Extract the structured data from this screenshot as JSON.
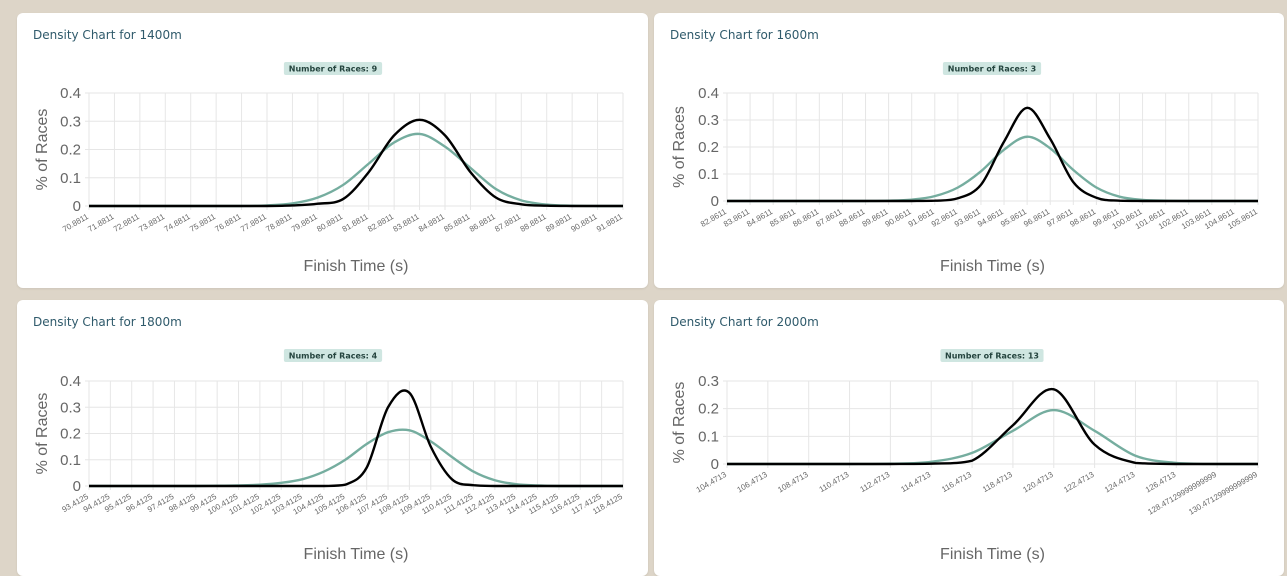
{
  "colors": {
    "series_actual": "#000000",
    "series_fitted": "#75ad9f",
    "badge_bg": "#cfe6e1",
    "title": "#2f5a6b"
  },
  "chart_data": [
    {
      "type": "line",
      "title": "Density Chart for 1400m",
      "badge": "Number of Races: 9",
      "xlabel": "Finish Time (s)",
      "ylabel": "% of Races",
      "ylim": [
        0,
        0.4
      ],
      "yticks": [
        "0",
        "0.1",
        "0.2",
        "0.3",
        "0.4"
      ],
      "x_categories": [
        "70.8811",
        "71.8811",
        "72.8811",
        "73.8811",
        "74.8811",
        "75.8811",
        "76.8811",
        "77.8811",
        "78.8811",
        "79.8811",
        "80.8811",
        "81.8811",
        "82.8811",
        "83.8811",
        "84.8811",
        "85.8811",
        "86.8811",
        "87.8811",
        "88.8811",
        "89.8811",
        "90.8811",
        "91.8811"
      ],
      "grid": true,
      "series": [
        {
          "values": [
            0,
            0,
            0,
            0,
            0,
            0,
            0,
            0,
            0.002,
            0.008,
            0.025,
            0.12,
            0.25,
            0.305,
            0.25,
            0.12,
            0.03,
            0.006,
            0.001,
            0,
            0,
            0
          ]
        },
        {
          "values": [
            0,
            0,
            0,
            0,
            0,
            0,
            0,
            0.002,
            0.009,
            0.03,
            0.075,
            0.15,
            0.225,
            0.255,
            0.21,
            0.135,
            0.06,
            0.02,
            0.005,
            0.001,
            0,
            0
          ]
        }
      ]
    },
    {
      "type": "line",
      "title": "Density Chart for 1600m",
      "badge": "Number of Races: 3",
      "xlabel": "Finish Time (s)",
      "ylabel": "% of Races",
      "ylim": [
        0,
        0.4
      ],
      "yticks": [
        "0",
        "0.1",
        "0.2",
        "0.3",
        "0.4"
      ],
      "x_categories": [
        "82.8611",
        "83.8611",
        "84.8611",
        "85.8611",
        "86.8611",
        "87.8611",
        "88.8611",
        "89.8611",
        "90.8611",
        "91.8611",
        "92.8611",
        "93.8611",
        "94.8611",
        "95.8611",
        "96.8611",
        "97.8611",
        "98.8611",
        "99.8611",
        "100.8611",
        "101.8611",
        "102.8611",
        "103.8611",
        "104.8611",
        "105.8611"
      ],
      "grid": true,
      "series": [
        {
          "values": [
            0,
            0,
            0,
            0,
            0,
            0,
            0,
            0,
            0,
            0.001,
            0.01,
            0.06,
            0.22,
            0.345,
            0.23,
            0.07,
            0.012,
            0.001,
            0,
            0,
            0,
            0,
            0,
            0
          ]
        },
        {
          "values": [
            0,
            0,
            0,
            0,
            0,
            0,
            0,
            0.001,
            0.005,
            0.018,
            0.05,
            0.11,
            0.19,
            0.238,
            0.195,
            0.115,
            0.05,
            0.016,
            0.004,
            0.001,
            0,
            0,
            0,
            0
          ]
        }
      ]
    },
    {
      "type": "line",
      "title": "Density Chart for 1800m",
      "badge": "Number of Races: 4",
      "xlabel": "Finish Time (s)",
      "ylabel": "% of Races",
      "ylim": [
        0,
        0.4
      ],
      "yticks": [
        "0",
        "0.1",
        "0.2",
        "0.3",
        "0.4"
      ],
      "x_categories": [
        "93.4125",
        "94.4125",
        "95.4125",
        "96.4125",
        "97.4125",
        "98.4125",
        "99.4125",
        "100.4125",
        "101.4125",
        "102.4125",
        "103.4125",
        "104.4125",
        "105.4125",
        "106.4125",
        "107.4125",
        "108.4125",
        "109.4125",
        "110.4125",
        "111.4125",
        "112.4125",
        "113.4125",
        "114.4125",
        "115.4125",
        "116.4125",
        "117.4125",
        "118.4125"
      ],
      "grid": true,
      "series": [
        {
          "values": [
            0,
            0,
            0,
            0,
            0,
            0,
            0,
            0,
            0,
            0,
            0,
            0,
            0.005,
            0.07,
            0.3,
            0.355,
            0.15,
            0.025,
            0.003,
            0,
            0,
            0,
            0,
            0,
            0,
            0
          ]
        },
        {
          "values": [
            0,
            0,
            0,
            0,
            0,
            0,
            0.001,
            0.002,
            0.005,
            0.012,
            0.026,
            0.055,
            0.1,
            0.16,
            0.205,
            0.212,
            0.17,
            0.11,
            0.055,
            0.022,
            0.007,
            0.002,
            0,
            0,
            0,
            0
          ]
        }
      ]
    },
    {
      "type": "line",
      "title": "Density Chart for 2000m",
      "badge": "Number of Races: 13",
      "xlabel": "Finish Time (s)",
      "ylabel": "% of Races",
      "ylim": [
        0,
        0.3
      ],
      "yticks": [
        "0",
        "0.1",
        "0.2",
        "0.3"
      ],
      "x_categories": [
        "104.4713",
        "106.4713",
        "108.4713",
        "110.4713",
        "112.4713",
        "114.4713",
        "116.4713",
        "118.4713",
        "120.4713",
        "122.4713",
        "124.4713",
        "126.4713",
        "128.47129999999999",
        "130.47129999999999"
      ],
      "grid": true,
      "series": [
        {
          "values": [
            0,
            0,
            0,
            0,
            0,
            0.001,
            0.012,
            0.14,
            0.27,
            0.07,
            0.004,
            0,
            0,
            0
          ]
        },
        {
          "values": [
            0,
            0,
            0,
            0,
            0.001,
            0.008,
            0.04,
            0.12,
            0.195,
            0.12,
            0.03,
            0.004,
            0,
            0
          ]
        }
      ]
    }
  ]
}
